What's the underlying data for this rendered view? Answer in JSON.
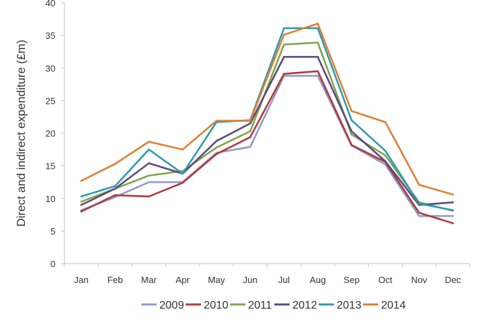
{
  "chart_data": {
    "type": "line",
    "title": "",
    "xlabel": "",
    "ylabel": "Direct and indirect expenditure (£m)",
    "categories": [
      "Jan",
      "Feb",
      "Mar",
      "Apr",
      "May",
      "Jun",
      "Jul",
      "Aug",
      "Sep",
      "Oct",
      "Nov",
      "Dec"
    ],
    "ylim": [
      0,
      40
    ],
    "yticks": [
      0,
      5,
      10,
      15,
      20,
      25,
      30,
      35,
      40
    ],
    "grid": false,
    "legend_position": "bottom",
    "series": [
      {
        "name": "2009",
        "color": "#8f9ccb",
        "values": [
          8.2,
          10.2,
          12.5,
          12.5,
          17.0,
          17.9,
          28.8,
          28.8,
          18.1,
          15.2,
          7.3,
          7.3
        ]
      },
      {
        "name": "2010",
        "color": "#b03a3f",
        "values": [
          8.0,
          10.5,
          10.3,
          12.4,
          16.8,
          19.4,
          29.1,
          29.5,
          18.2,
          15.6,
          7.8,
          6.2
        ]
      },
      {
        "name": "2011",
        "color": "#7ea64c",
        "values": [
          9.5,
          11.5,
          13.5,
          14.2,
          17.8,
          20.3,
          33.6,
          33.9,
          19.8,
          16.6,
          9.4,
          8.1
        ]
      },
      {
        "name": "2012",
        "color": "#5e4a80",
        "values": [
          9.0,
          11.5,
          15.4,
          13.8,
          18.8,
          21.5,
          31.7,
          31.7,
          20.3,
          15.7,
          9.0,
          9.4
        ]
      },
      {
        "name": "2013",
        "color": "#2f9bb1",
        "values": [
          10.3,
          11.9,
          17.5,
          13.8,
          21.7,
          22.0,
          36.1,
          36.1,
          22.0,
          17.3,
          9.2,
          8.2
        ]
      },
      {
        "name": "2014",
        "color": "#e07f34",
        "values": [
          12.7,
          15.3,
          18.7,
          17.5,
          21.9,
          21.9,
          35.1,
          36.8,
          23.4,
          21.7,
          12.1,
          10.6
        ]
      }
    ]
  }
}
